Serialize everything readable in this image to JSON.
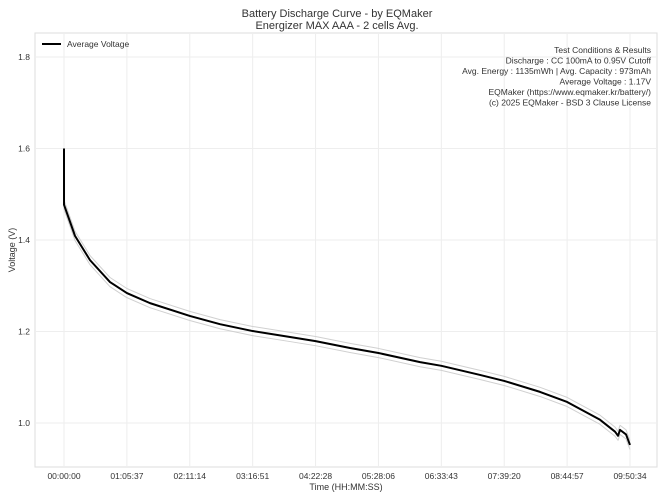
{
  "chart_data": {
    "type": "line",
    "title": "Battery Discharge Curve - by EQMaker",
    "subtitle": "Energizer MAX AAA - 2 cells Avg.",
    "xlabel": "Time (HH:MM:SS)",
    "ylabel": "Voltage (V)",
    "xlim": [
      "00:00:00",
      "09:50:34"
    ],
    "ylim": [
      0.9,
      1.85
    ],
    "x_ticks": [
      "00:00:00",
      "01:05:37",
      "02:11:14",
      "03:16:51",
      "04:22:28",
      "05:28:06",
      "06:33:43",
      "07:39:20",
      "08:44:57",
      "09:50:34"
    ],
    "y_ticks": [
      "1.0",
      "1.2",
      "1.4",
      "1.6",
      "1.8"
    ],
    "grid": true,
    "legend_position": "top-left",
    "x": [
      "00:00:00",
      "00:00:01",
      "00:11:29",
      "00:27:08",
      "00:48:00",
      "01:05:37",
      "01:29:43",
      "02:11:14",
      "02:42:47",
      "03:16:51",
      "03:55:50",
      "04:22:28",
      "04:58:26",
      "05:28:06",
      "06:11:29",
      "06:33:43",
      "07:14:05",
      "07:39:20",
      "08:16:41",
      "08:44:57",
      "09:19:19",
      "09:34:58",
      "09:38:05",
      "09:40:10",
      "09:46:26",
      "09:50:34"
    ],
    "series": [
      {
        "name": "Average Voltage",
        "color": "#000000",
        "values": [
          1.6,
          1.477,
          1.409,
          1.356,
          1.308,
          1.284,
          1.262,
          1.234,
          1.216,
          1.201,
          1.188,
          1.179,
          1.164,
          1.153,
          1.133,
          1.125,
          1.105,
          1.092,
          1.068,
          1.046,
          1.007,
          0.981,
          0.972,
          0.985,
          0.975,
          0.952
        ]
      },
      {
        "color": "#d0d0d0",
        "values": [
          1.6,
          1.487,
          1.419,
          1.366,
          1.318,
          1.294,
          1.272,
          1.244,
          1.226,
          1.211,
          1.198,
          1.189,
          1.174,
          1.163,
          1.143,
          1.135,
          1.115,
          1.102,
          1.078,
          1.056,
          1.017,
          0.991,
          0.982,
          0.995,
          0.985,
          0.962
        ]
      },
      {
        "color": "#d0d0d0",
        "values": [
          1.6,
          1.467,
          1.399,
          1.346,
          1.298,
          1.274,
          1.252,
          1.224,
          1.206,
          1.191,
          1.178,
          1.169,
          1.154,
          1.143,
          1.123,
          1.115,
          1.095,
          1.082,
          1.058,
          1.036,
          0.997,
          0.971,
          0.962,
          0.975,
          0.965,
          0.942
        ]
      }
    ],
    "annotations": [
      "Test Conditions & Results",
      "Discharge : CC 100mA to 0.95V Cutoff",
      "Avg. Energy : 1135mWh | Avg. Capacity : 973mAh",
      "Average Voltage : 1.17V",
      "EQMaker (https://www.eqmaker.kr/battery/)",
      "(c) 2025 EQMaker - BSD 3 Clause License"
    ]
  }
}
